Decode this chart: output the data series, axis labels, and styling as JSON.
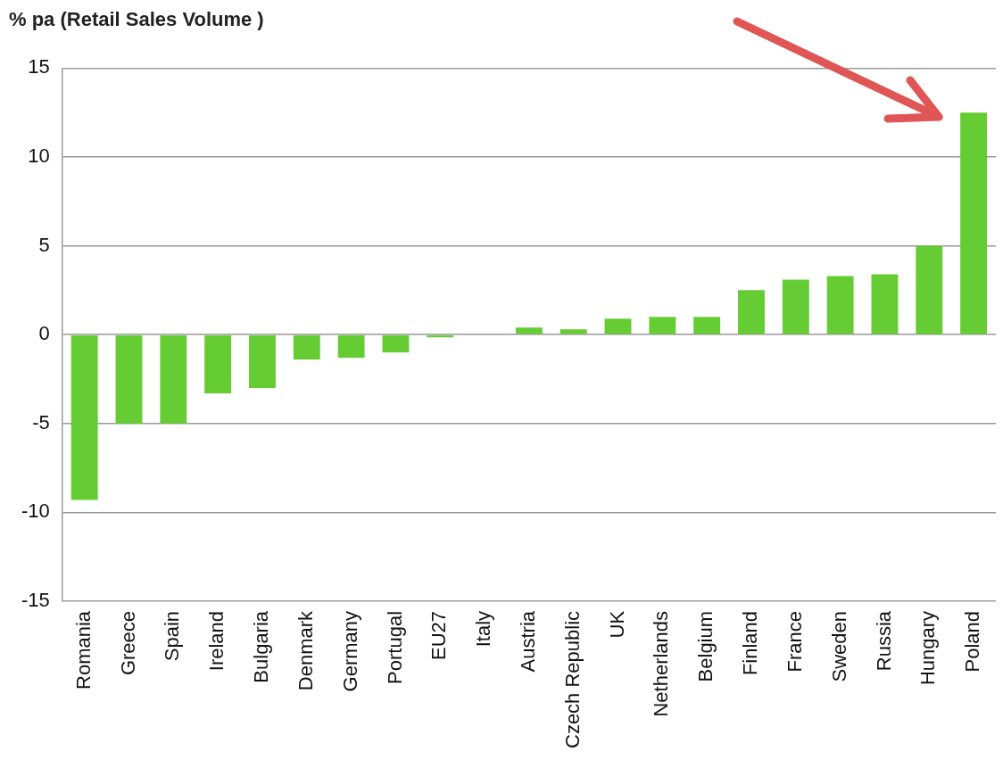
{
  "chart_data": {
    "type": "bar",
    "title": "% pa (Retail Sales Volume )",
    "categories": [
      "Romania",
      "Greece",
      "Spain",
      "Ireland",
      "Bulgaria",
      "Denmark",
      "Germany",
      "Portugal",
      "EU27",
      "Italy",
      "Austria",
      "Czech Republic",
      "UK",
      "Netherlands",
      "Belgium",
      "Finland",
      "France",
      "Sweden",
      "Russia",
      "Hungary",
      "Poland"
    ],
    "values": [
      -9.3,
      -5.0,
      -5.0,
      -3.3,
      -3.0,
      -1.4,
      -1.3,
      -1.0,
      -0.15,
      0,
      0.4,
      0.3,
      0.9,
      1.0,
      1.0,
      2.5,
      3.1,
      3.3,
      3.4,
      5.0,
      12.5
    ],
    "color": "#66cc33",
    "ylim": [
      -15,
      15
    ],
    "yticks": [
      -15,
      -10,
      -5,
      0,
      5,
      10,
      15
    ],
    "grid": "y",
    "legend": false
  }
}
